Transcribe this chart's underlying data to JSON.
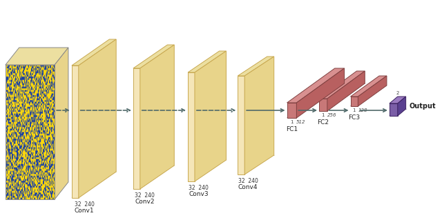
{
  "bg_color": "#ffffff",
  "conv_face_color": "#f5e6b8",
  "conv_top_color": "#ecdfa0",
  "conv_side_color": "#e8d48a",
  "conv_edge_color": "#c8a850",
  "conv_dash_color": "#c8a850",
  "fc_face_color": "#c87878",
  "fc_top_color": "#d89090",
  "fc_side_color": "#b86060",
  "fc_edge_color": "#804040",
  "out_face_color": "#7b5ea7",
  "out_top_color": "#9a7ac0",
  "out_side_color": "#5a4090",
  "out_edge_color": "#3a2060",
  "arrow_color": "#506a6a",
  "img_yellow": [
    1.0,
    0.85,
    0.05
  ],
  "img_blue": [
    0.1,
    0.25,
    0.65
  ],
  "conv_labels": [
    "Conv1",
    "Conv2",
    "Conv3",
    "Conv4"
  ],
  "conv_dims": [
    "32  240",
    "32  240",
    "32  240",
    "32  240"
  ],
  "fc_labels": [
    "FC1",
    "FC2",
    "FC3"
  ],
  "fc_dims1": [
    "1",
    "1",
    "1"
  ],
  "fc_dims2": [
    "512",
    "256",
    "128"
  ],
  "out_label": "Output",
  "out_dim": "2"
}
